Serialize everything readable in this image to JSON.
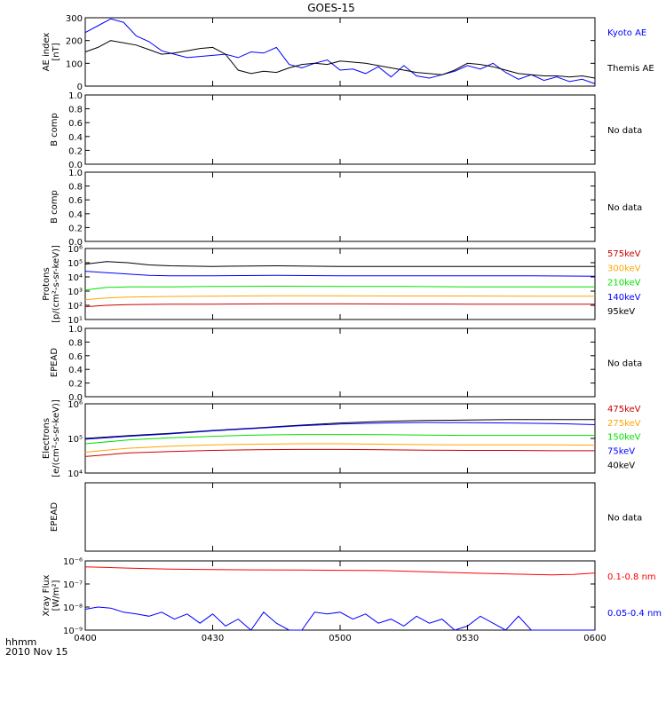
{
  "title": "GOES-15",
  "x_axis": {
    "ticks": [
      "0400",
      "0430",
      "0500",
      "0530",
      "0600"
    ],
    "hhmm_label": "hhmm",
    "date_label": "2010 Nov 15"
  },
  "colors": {
    "black": "#000000",
    "blue": "#0000ff",
    "green": "#00e000",
    "orange": "#ffa500",
    "red": "#cc0000",
    "xray_red": "#ff0000"
  },
  "chart_data": [
    {
      "type": "line",
      "panel": "ae",
      "ylabel": [
        "AE index",
        "[nT]"
      ],
      "ylim": [
        0,
        300
      ],
      "yticks": [
        "0",
        "100",
        "200",
        "300"
      ],
      "xlim": [
        "0400",
        "0600"
      ],
      "legend": [
        {
          "text": "Kyoto AE",
          "color": "#0000ff"
        },
        {
          "text": "Themis AE",
          "color": "#000000"
        }
      ],
      "series": [
        {
          "name": "Kyoto AE",
          "color": "#0000ff",
          "x": [
            "0400",
            "0403",
            "0406",
            "0409",
            "0412",
            "0415",
            "0418",
            "0421",
            "0424",
            "0427",
            "0430",
            "0433",
            "0436",
            "0439",
            "0442",
            "0445",
            "0448",
            "0451",
            "0454",
            "0457",
            "0500",
            "0503",
            "0506",
            "0509",
            "0512",
            "0515",
            "0518",
            "0521",
            "0524",
            "0527",
            "0530",
            "0533",
            "0536",
            "0539",
            "0542",
            "0545",
            "0548",
            "0551",
            "0554",
            "0557",
            "0600"
          ],
          "y": [
            235,
            265,
            295,
            280,
            220,
            195,
            155,
            140,
            125,
            130,
            135,
            140,
            125,
            150,
            145,
            170,
            95,
            80,
            100,
            115,
            70,
            75,
            55,
            85,
            40,
            90,
            45,
            35,
            50,
            65,
            90,
            75,
            100,
            60,
            30,
            50,
            25,
            40,
            20,
            30,
            10
          ]
        },
        {
          "name": "Themis AE",
          "color": "#000000",
          "x": [
            "0400",
            "0403",
            "0406",
            "0409",
            "0412",
            "0415",
            "0418",
            "0421",
            "0424",
            "0427",
            "0430",
            "0433",
            "0436",
            "0439",
            "0442",
            "0445",
            "0448",
            "0451",
            "0454",
            "0457",
            "0500",
            "0503",
            "0506",
            "0509",
            "0512",
            "0515",
            "0518",
            "0521",
            "0524",
            "0527",
            "0530",
            "0533",
            "0536",
            "0539",
            "0542",
            "0545",
            "0548",
            "0551",
            "0554",
            "0557",
            "0600"
          ],
          "y": [
            150,
            170,
            200,
            190,
            180,
            160,
            140,
            145,
            155,
            165,
            170,
            140,
            70,
            55,
            65,
            60,
            80,
            95,
            100,
            95,
            110,
            105,
            100,
            90,
            80,
            70,
            60,
            55,
            50,
            70,
            100,
            95,
            85,
            70,
            55,
            50,
            45,
            45,
            40,
            45,
            35
          ]
        }
      ]
    },
    {
      "type": "line",
      "panel": "b1",
      "ylabel": [
        "B comp"
      ],
      "ylim": [
        0,
        1
      ],
      "yticks": [
        "0.0",
        "0.2",
        "0.4",
        "0.6",
        "0.8",
        "1.0"
      ],
      "note": "No data",
      "series": []
    },
    {
      "type": "line",
      "panel": "b2",
      "ylabel": [
        "B comp"
      ],
      "ylim": [
        0,
        1
      ],
      "yticks": [
        "0.0",
        "0.2",
        "0.4",
        "0.6",
        "0.8",
        "1.0"
      ],
      "note": "No data",
      "series": []
    },
    {
      "type": "line",
      "panel": "protons",
      "scale": "log",
      "ylabel": [
        "Protons",
        "[p/(cm²-s-sr-keV)]"
      ],
      "ylim": [
        10,
        1000000
      ],
      "yticks": [
        "10¹",
        "10²",
        "10³",
        "10⁴",
        "10⁵",
        "10⁶"
      ],
      "legend": [
        {
          "text": "575keV",
          "color": "#cc0000"
        },
        {
          "text": "300keV",
          "color": "#ffa500"
        },
        {
          "text": "210keV",
          "color": "#00e000"
        },
        {
          "text": "140keV",
          "color": "#0000ff"
        },
        {
          "text": "95keV",
          "color": "#000000"
        }
      ],
      "series": [
        {
          "name": "95keV",
          "color": "#000000",
          "x": [
            "0400",
            "0405",
            "0410",
            "0415",
            "0420",
            "0430",
            "0445",
            "0500",
            "0515",
            "0530",
            "0545",
            "0600"
          ],
          "y": [
            80000,
            120000,
            100000,
            70000,
            60000,
            55000,
            60000,
            55000,
            55000,
            55000,
            55000,
            55000
          ]
        },
        {
          "name": "140keV",
          "color": "#0000ff",
          "x": [
            "0400",
            "0405",
            "0410",
            "0415",
            "0420",
            "0430",
            "0445",
            "0500",
            "0515",
            "0530",
            "0545",
            "0600"
          ],
          "y": [
            25000,
            20000,
            16000,
            13000,
            12000,
            12000,
            13000,
            12000,
            12000,
            12000,
            12000,
            11000
          ]
        },
        {
          "name": "210keV",
          "color": "#00e000",
          "x": [
            "0400",
            "0405",
            "0410",
            "0415",
            "0420",
            "0430",
            "0445",
            "0500",
            "0515",
            "0530",
            "0545",
            "0600"
          ],
          "y": [
            1200,
            1800,
            2000,
            2000,
            2000,
            2100,
            2200,
            2100,
            2100,
            2000,
            2000,
            2000
          ]
        },
        {
          "name": "300keV",
          "color": "#ffa500",
          "x": [
            "0400",
            "0405",
            "0410",
            "0415",
            "0420",
            "0430",
            "0445",
            "0500",
            "0515",
            "0530",
            "0545",
            "0600"
          ],
          "y": [
            250,
            330,
            380,
            400,
            420,
            440,
            470,
            460,
            450,
            450,
            440,
            440
          ]
        },
        {
          "name": "575keV",
          "color": "#cc0000",
          "x": [
            "0400",
            "0405",
            "0410",
            "0415",
            "0420",
            "0430",
            "0445",
            "0500",
            "0515",
            "0530",
            "0545",
            "0600"
          ],
          "y": [
            80,
            100,
            110,
            115,
            118,
            120,
            125,
            125,
            122,
            120,
            120,
            118
          ]
        }
      ]
    },
    {
      "type": "line",
      "panel": "epead1",
      "ylabel": [
        "EPEAD"
      ],
      "ylim": [
        0,
        1
      ],
      "yticks": [
        "0.0",
        "0.2",
        "0.4",
        "0.6",
        "0.8",
        "1.0"
      ],
      "note": "No data",
      "series": []
    },
    {
      "type": "line",
      "panel": "electrons",
      "scale": "log",
      "ylabel": [
        "Electrons",
        "[e/(cm²-s-sr-keV)]"
      ],
      "ylim": [
        10000,
        1000000
      ],
      "yticks": [
        "10⁴",
        "10⁵",
        "10⁶"
      ],
      "legend": [
        {
          "text": "475keV",
          "color": "#cc0000"
        },
        {
          "text": "275keV",
          "color": "#ffa500"
        },
        {
          "text": "150keV",
          "color": "#00e000"
        },
        {
          "text": "75keV",
          "color": "#0000ff"
        },
        {
          "text": "40keV",
          "color": "#000000"
        }
      ],
      "series": [
        {
          "name": "40keV",
          "color": "#000000",
          "x": [
            "0400",
            "0410",
            "0420",
            "0430",
            "0440",
            "0450",
            "0500",
            "0510",
            "0520",
            "0530",
            "0540",
            "0550",
            "0600"
          ],
          "y": [
            100000,
            120000,
            140000,
            170000,
            200000,
            240000,
            280000,
            310000,
            330000,
            340000,
            350000,
            350000,
            350000
          ]
        },
        {
          "name": "75keV",
          "color": "#0000ff",
          "x": [
            "0400",
            "0410",
            "0420",
            "0430",
            "0440",
            "0450",
            "0500",
            "0510",
            "0520",
            "0530",
            "0540",
            "0550",
            "0600"
          ],
          "y": [
            95000,
            115000,
            135000,
            165000,
            195000,
            230000,
            260000,
            280000,
            290000,
            285000,
            280000,
            270000,
            250000
          ]
        },
        {
          "name": "150keV",
          "color": "#00e000",
          "x": [
            "0400",
            "0410",
            "0420",
            "0430",
            "0440",
            "0450",
            "0500",
            "0510",
            "0520",
            "0530",
            "0540",
            "0550",
            "0600"
          ],
          "y": [
            70000,
            90000,
            105000,
            115000,
            125000,
            130000,
            130000,
            128000,
            125000,
            122000,
            122000,
            122000,
            122000
          ]
        },
        {
          "name": "275keV",
          "color": "#ffa500",
          "x": [
            "0400",
            "0410",
            "0420",
            "0430",
            "0440",
            "0450",
            "0500",
            "0510",
            "0520",
            "0530",
            "0540",
            "0550",
            "0600"
          ],
          "y": [
            40000,
            52000,
            60000,
            65000,
            68000,
            70000,
            70000,
            68000,
            66000,
            65000,
            65000,
            65000,
            64000
          ]
        },
        {
          "name": "475keV",
          "color": "#cc0000",
          "x": [
            "0400",
            "0410",
            "0420",
            "0430",
            "0440",
            "0450",
            "0500",
            "0510",
            "0520",
            "0530",
            "0540",
            "0550",
            "0600"
          ],
          "y": [
            30000,
            38000,
            42000,
            45000,
            47000,
            48000,
            48000,
            47000,
            46000,
            45000,
            45000,
            44000,
            44000
          ]
        }
      ]
    },
    {
      "type": "line",
      "panel": "epead2",
      "ylabel": [
        "EPEAD"
      ],
      "ylim": [
        0,
        1
      ],
      "yticks": [],
      "note": "No data",
      "series": []
    },
    {
      "type": "line",
      "panel": "xray",
      "scale": "log",
      "ylabel": [
        "Xray Flux",
        "[W/m²]"
      ],
      "ylim": [
        1e-09,
        1e-06
      ],
      "yticks": [
        "10⁻⁹",
        "10⁻⁸",
        "10⁻⁷",
        "10⁻⁶"
      ],
      "legend": [
        {
          "text": "0.1-0.8 nm",
          "color": "#ff0000"
        },
        {
          "text": "0.05-0.4 nm",
          "color": "#0000ff"
        }
      ],
      "series": [
        {
          "name": "0.1-0.8 nm",
          "color": "#ff0000",
          "x": [
            "0400",
            "0405",
            "0410",
            "0415",
            "0420",
            "0430",
            "0440",
            "0450",
            "0500",
            "0510",
            "0520",
            "0530",
            "0540",
            "0550",
            "0555",
            "0600"
          ],
          "y": [
            5.5e-07,
            5.2e-07,
            4.9e-07,
            4.6e-07,
            4.4e-07,
            4.2e-07,
            4.1e-07,
            4e-07,
            3.9e-07,
            3.8e-07,
            3.4e-07,
            3e-07,
            2.7e-07,
            2.5e-07,
            2.6e-07,
            3e-07
          ]
        },
        {
          "name": "0.05-0.4 nm",
          "color": "#0000ff",
          "x": [
            "0400",
            "0403",
            "0406",
            "0409",
            "0412",
            "0415",
            "0418",
            "0421",
            "0424",
            "0427",
            "0430",
            "0433",
            "0436",
            "0439",
            "0442",
            "0445",
            "0448",
            "0451",
            "0454",
            "0457",
            "0500",
            "0503",
            "0506",
            "0509",
            "0512",
            "0515",
            "0518",
            "0521",
            "0524",
            "0527",
            "0530",
            "0533",
            "0536",
            "0539",
            "0542",
            "0545",
            "0548",
            "0551",
            "0554",
            "0557",
            "0600"
          ],
          "y": [
            8e-09,
            1e-08,
            9e-09,
            6e-09,
            5e-09,
            4e-09,
            6e-09,
            3e-09,
            5e-09,
            2e-09,
            5e-09,
            1.5e-09,
            3e-09,
            1e-09,
            6e-09,
            2e-09,
            1e-09,
            1e-09,
            6e-09,
            5e-09,
            6e-09,
            3e-09,
            5e-09,
            2e-09,
            3e-09,
            1.5e-09,
            4e-09,
            2e-09,
            3e-09,
            1e-09,
            1.5e-09,
            4e-09,
            2e-09,
            1e-09,
            4e-09,
            1e-09,
            1e-09,
            1e-09,
            1e-09,
            1e-09,
            1e-09
          ]
        }
      ]
    }
  ]
}
